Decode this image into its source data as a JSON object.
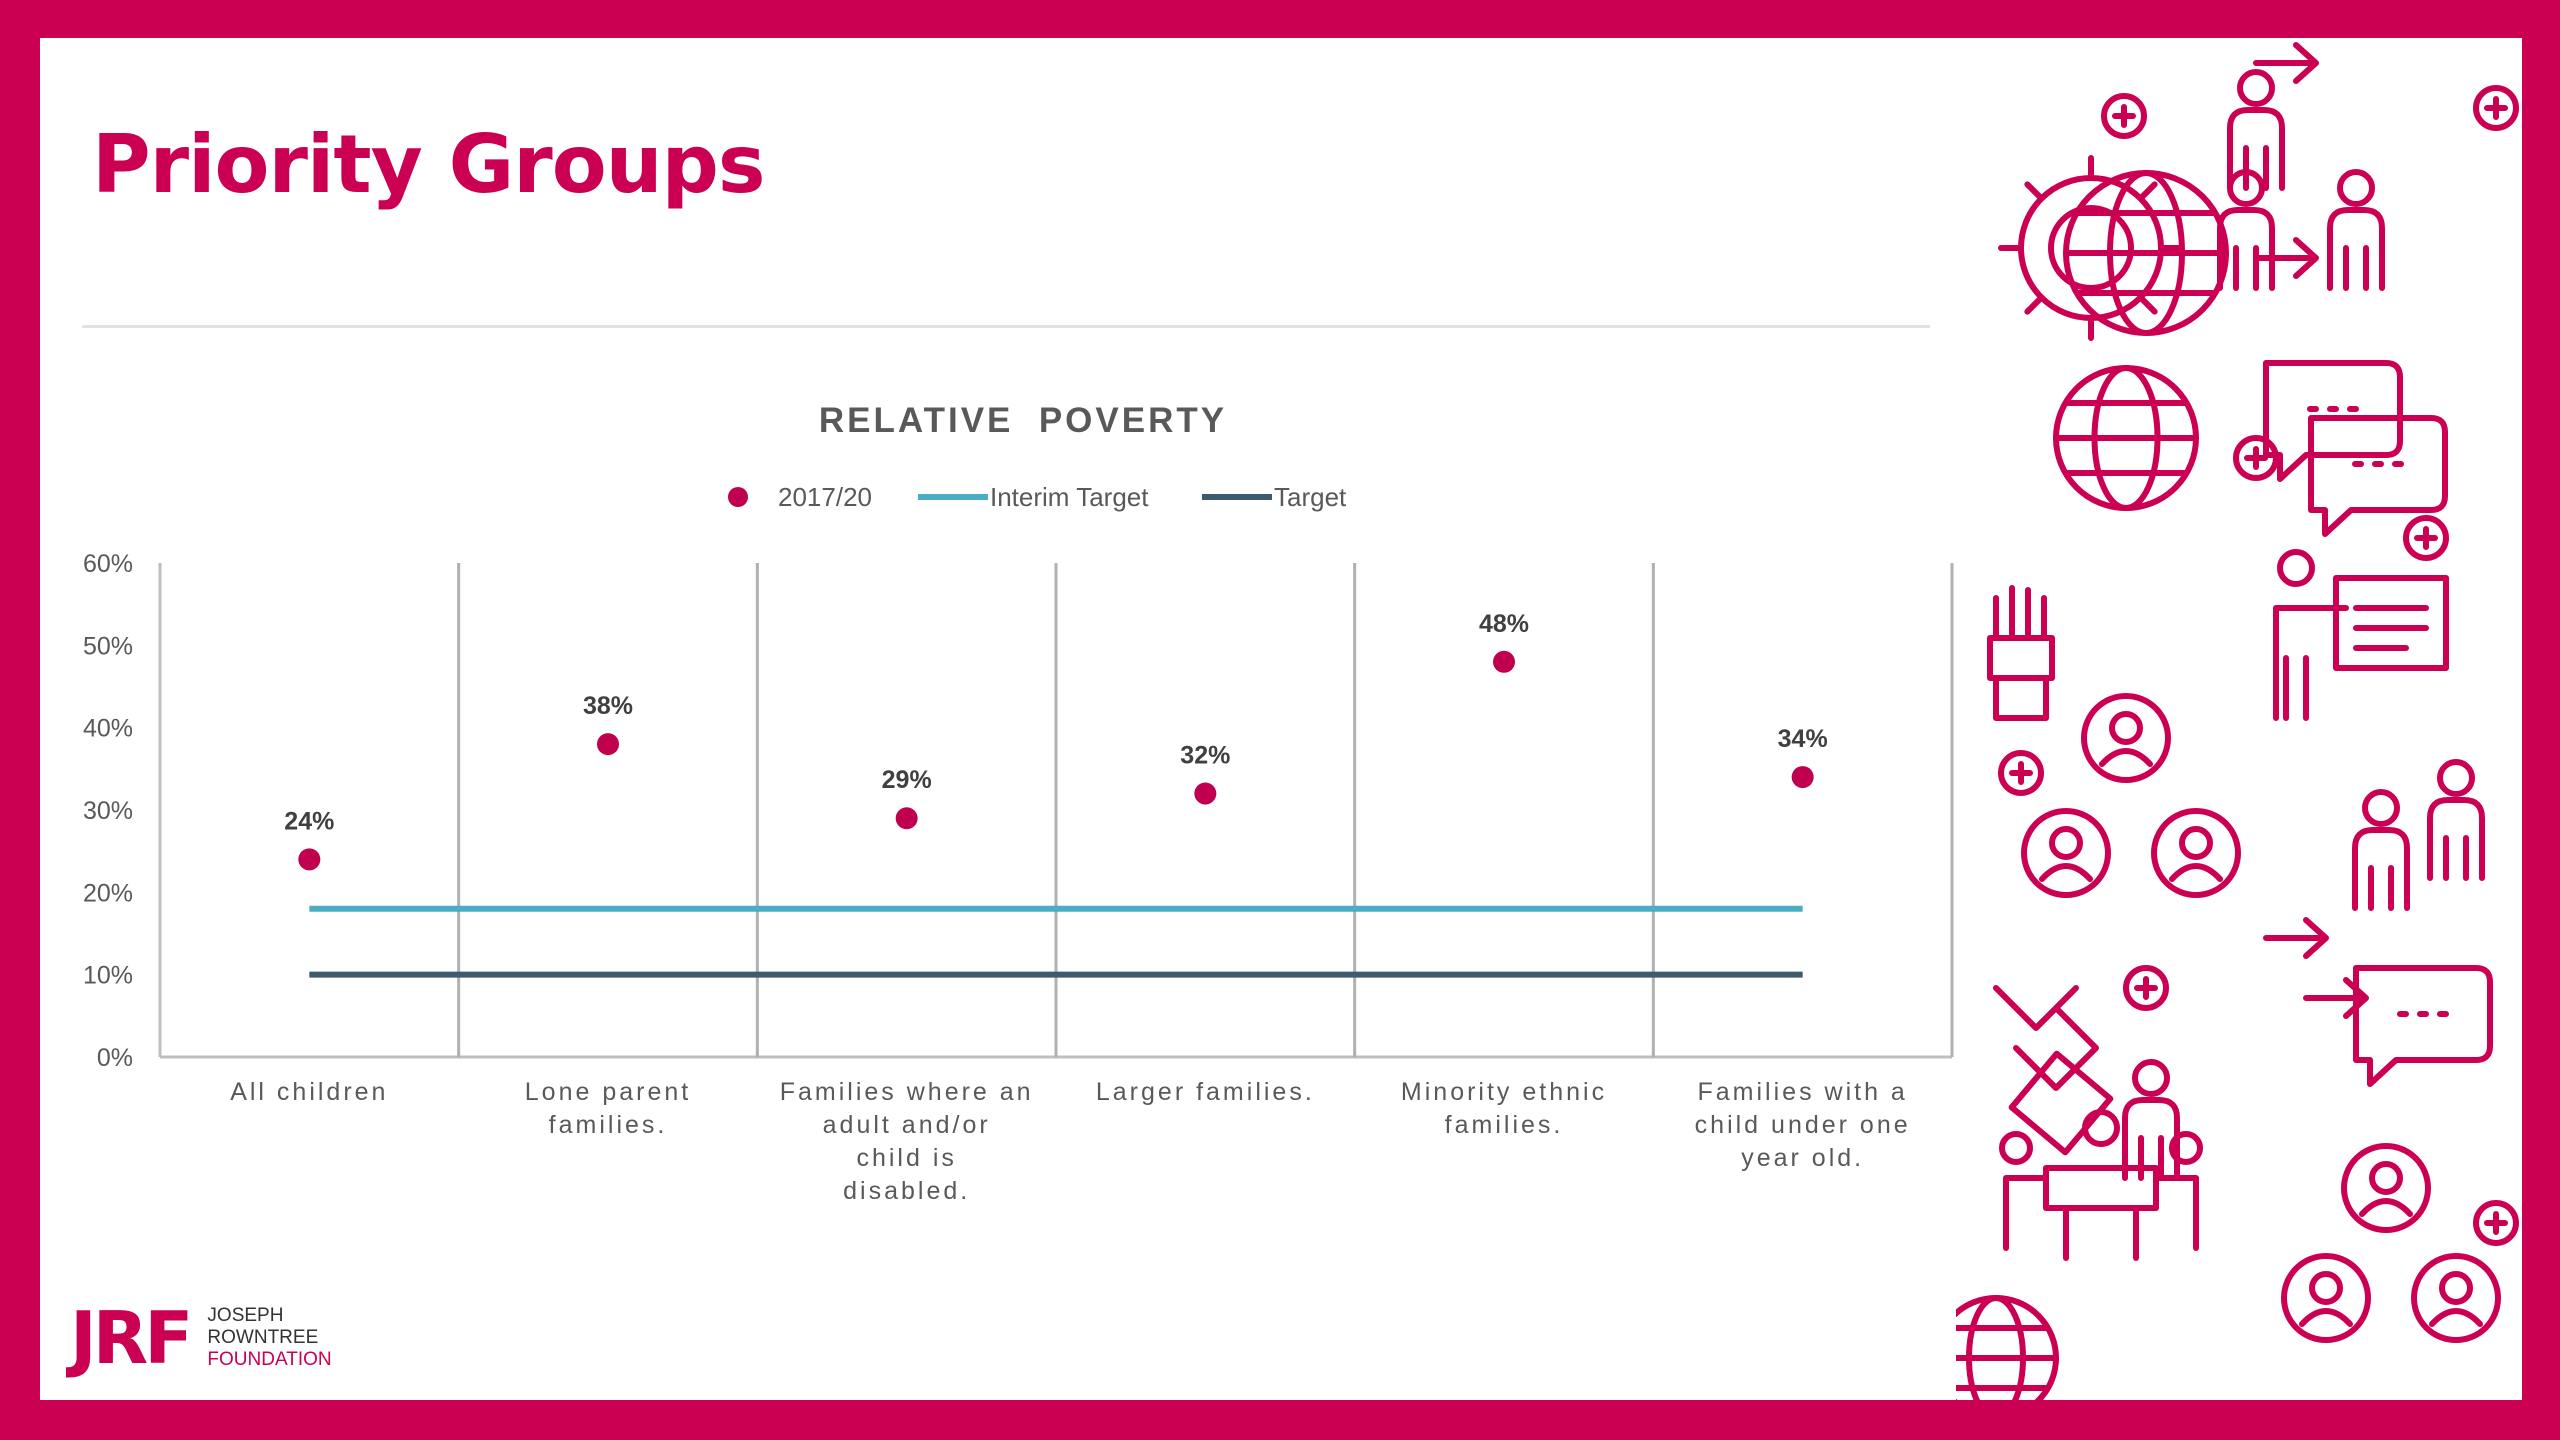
{
  "slide": {
    "title": "Priority Groups"
  },
  "logo": {
    "mark": "JRF",
    "line1": "JOSEPH",
    "line2": "ROWNTREE",
    "line3": "FOUNDATION"
  },
  "colors": {
    "brand": "#cc0052",
    "point": "#c0004e",
    "interim_target": "#4bacc6",
    "target": "#3d5a6e"
  },
  "icons": [
    "hand-icon",
    "globe-icon",
    "gear-icon",
    "person-icon",
    "speech-bubble-icon",
    "presenter-icon",
    "handshake-icon",
    "meeting-icon",
    "user-network-icon",
    "plus-icon",
    "arrow-icon"
  ],
  "chart_data": {
    "type": "scatter",
    "title": "RELATIVE  POVERTY",
    "legend_position": "top",
    "categories": [
      "All children",
      "Lone parent families.",
      "Families where an adult and/or child is disabled.",
      "Larger families.",
      "Minority ethnic families.",
      "Families with a child under one year old."
    ],
    "series": [
      {
        "name": "2017/20",
        "kind": "points",
        "values": [
          24,
          38,
          29,
          32,
          48,
          34
        ],
        "labels": [
          "24%",
          "38%",
          "29%",
          "32%",
          "48%",
          "34%"
        ]
      },
      {
        "name": "Interim Target",
        "kind": "line",
        "values": [
          18,
          18,
          18,
          18,
          18,
          18
        ]
      },
      {
        "name": "Target",
        "kind": "line",
        "values": [
          10,
          10,
          10,
          10,
          10,
          10
        ]
      }
    ],
    "y_ticks": [
      "0%",
      "10%",
      "20%",
      "30%",
      "40%",
      "50%",
      "60%"
    ],
    "ylim": [
      0,
      60
    ],
    "grid": false,
    "category_separators": true
  }
}
